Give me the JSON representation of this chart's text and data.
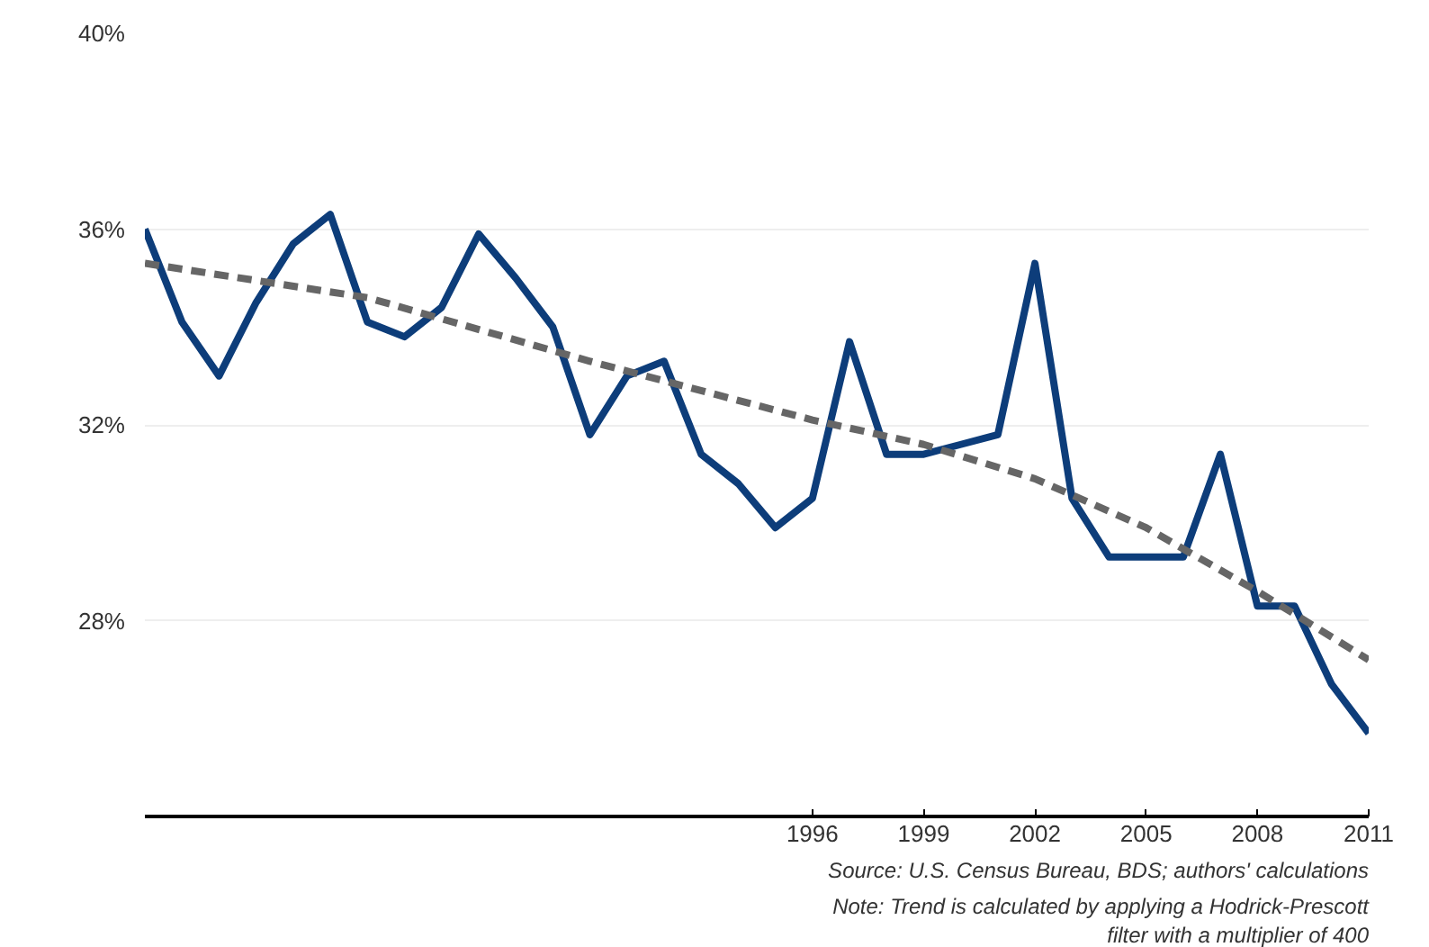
{
  "chart_data": {
    "type": "line",
    "x": [
      1978,
      1979,
      1980,
      1981,
      1982,
      1983,
      1984,
      1985,
      1986,
      1987,
      1988,
      1989,
      1990,
      1991,
      1992,
      1993,
      1994,
      1995,
      1996,
      1997,
      1998,
      1999,
      2000,
      2001,
      2002,
      2003,
      2004,
      2005,
      2006,
      2007,
      2008,
      2009,
      2010,
      2011
    ],
    "series": [
      {
        "color": "#0d3d7a",
        "line_style": "solid",
        "values": [
          36.0,
          34.1,
          33.0,
          34.5,
          35.7,
          36.3,
          34.1,
          33.8,
          34.4,
          35.9,
          35.0,
          34.0,
          31.8,
          33.0,
          33.3,
          31.4,
          30.8,
          29.9,
          30.5,
          33.7,
          31.4,
          31.4,
          31.6,
          31.8,
          35.3,
          30.5,
          29.3,
          29.3,
          29.3,
          31.4,
          28.3,
          28.3,
          26.7,
          25.7
        ]
      },
      {
        "color": "#666666",
        "line_style": "dashed",
        "x": [
          1978,
          1984,
          1990,
          1996,
          1999,
          2002,
          2005,
          2008,
          2011
        ],
        "values": [
          35.3,
          34.6,
          33.3,
          32.1,
          31.6,
          30.9,
          29.9,
          28.6,
          27.2
        ]
      }
    ],
    "xlim": [
      1978,
      2011
    ],
    "xticks": [
      1996,
      1999,
      2002,
      2005,
      2008,
      2011
    ],
    "ylim": [
      24,
      40
    ],
    "yticks": [
      {
        "value": 28,
        "label": "28%"
      },
      {
        "value": 32,
        "label": "32%"
      },
      {
        "value": 36,
        "label": "36%"
      },
      {
        "value": 40,
        "label": "40%"
      }
    ],
    "grid": "y",
    "annotations": [
      "Source: U.S. Census Bureau, BDS; authors' calculations",
      "Note: Trend is calculated by applying a Hodrick-Prescott",
      "filter with a multiplier of 400"
    ]
  }
}
